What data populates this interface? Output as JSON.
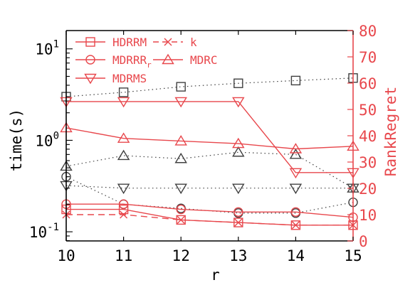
{
  "chart_data": {
    "type": "line",
    "x": [
      10,
      11,
      12,
      13,
      14,
      15
    ],
    "xlabel": "r",
    "xlim": [
      10,
      15
    ],
    "xticks": [
      "10",
      "11",
      "12",
      "13",
      "14",
      "15"
    ],
    "ylabel_left": "time(s)",
    "ylim_left": [
      0.0794,
      15.85
    ],
    "yscale_left": "log",
    "yticks_left": [
      {
        "value": 0.1,
        "base": "10",
        "exp": "-1"
      },
      {
        "value": 1,
        "base": "10",
        "exp": "0"
      },
      {
        "value": 10,
        "base": "10",
        "exp": "1"
      }
    ],
    "ylabel_right": "RankRegret",
    "ylim_right": [
      0,
      80
    ],
    "yticks_right": [
      "0",
      "10",
      "20",
      "30",
      "40",
      "50",
      "60",
      "70",
      "80"
    ],
    "legend": {
      "placement": "top-left",
      "entries": [
        {
          "label": "HDRRM",
          "marker": "square",
          "dash": "solid"
        },
        {
          "label": "k",
          "marker": "x",
          "dash": "dashed"
        },
        {
          "label": "MDRRR",
          "sub": "r",
          "marker": "circle",
          "dash": "solid"
        },
        {
          "label": "MDRC",
          "marker": "triangle-up",
          "dash": "solid"
        },
        {
          "label": "MDRMS",
          "marker": "triangle-down",
          "dash": "solid"
        }
      ]
    },
    "time_series": [
      {
        "name": "HDRRM",
        "marker": "square",
        "values": [
          3.0,
          3.35,
          3.85,
          4.2,
          4.5,
          4.8
        ]
      },
      {
        "name": "MDRRR_r",
        "marker": "circle",
        "values": [
          0.4,
          0.2,
          0.18,
          0.16,
          0.16,
          0.21
        ]
      },
      {
        "name": "MDRC",
        "marker": "triangle-up",
        "values": [
          0.52,
          0.68,
          0.63,
          0.74,
          0.7,
          0.3
        ]
      },
      {
        "name": "MDRMS",
        "marker": "triangle-down",
        "values": [
          0.32,
          0.3,
          0.3,
          0.3,
          0.3,
          0.3
        ]
      }
    ],
    "rank_regret_series": [
      {
        "name": "k",
        "marker": "x",
        "dash": "dashed",
        "values": [
          10,
          10,
          8,
          7,
          6,
          6
        ]
      },
      {
        "name": "HDRRM",
        "marker": "square",
        "values": [
          12,
          12,
          8,
          7,
          6,
          6
        ]
      },
      {
        "name": "MDRRR_r",
        "marker": "circle",
        "values": [
          14,
          14,
          12,
          11,
          11,
          9
        ]
      },
      {
        "name": "MDRC",
        "marker": "triangle-up",
        "values": [
          43,
          39,
          38,
          37,
          35,
          36
        ]
      },
      {
        "name": "MDRMS",
        "marker": "triangle-down",
        "values": [
          53,
          53,
          53,
          53,
          26,
          26
        ]
      }
    ],
    "colors": {
      "time": "#404040",
      "rank_regret": "#e8474c",
      "axis": "#000000"
    }
  }
}
